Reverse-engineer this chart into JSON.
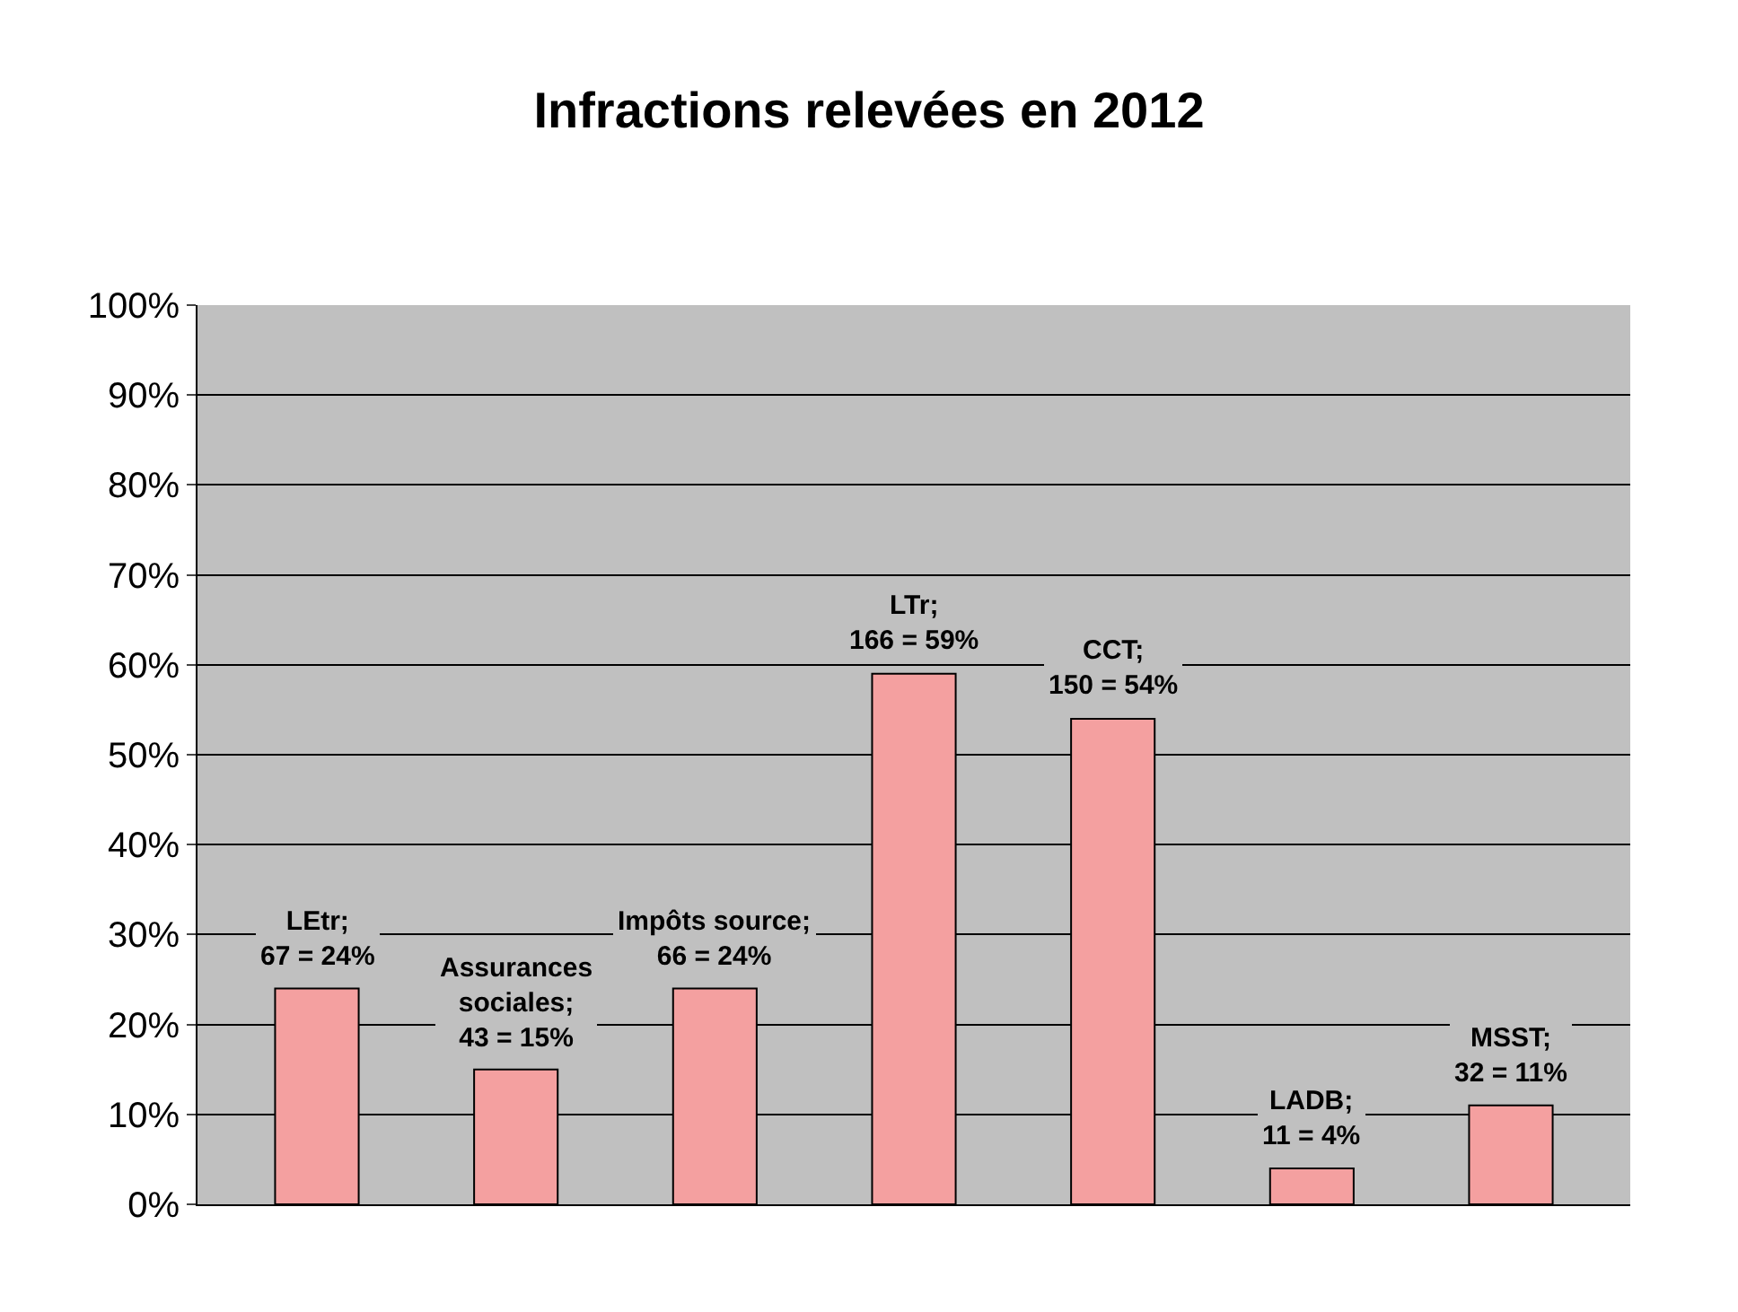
{
  "chart_data": {
    "type": "bar",
    "title": "Infractions relevées en 2012",
    "categories": [
      null,
      null,
      null,
      null,
      null,
      null,
      null
    ],
    "values": [
      24,
      15,
      24,
      59,
      54,
      4,
      11
    ],
    "value_labels": [
      "LEtr;\n67 = 24%",
      "Assurances\nsociales;\n43 = 15%",
      "Impôts source;\n66 = 24%",
      "LTr;\n166 = 59%",
      "CCT;\n150 = 54%",
      "LADB;\n11 = 4%",
      "MSST;\n32 = 11%"
    ],
    "color": "#f4a0a0",
    "ylim": [
      0,
      100
    ],
    "yticks": [
      {
        "value": 0,
        "label": "0%"
      },
      {
        "value": 10,
        "label": "10%"
      },
      {
        "value": 20,
        "label": "20%"
      },
      {
        "value": 30,
        "label": "30%"
      },
      {
        "value": 40,
        "label": "40%"
      },
      {
        "value": 50,
        "label": "50%"
      },
      {
        "value": 60,
        "label": "60%"
      },
      {
        "value": 70,
        "label": "70%"
      },
      {
        "value": 80,
        "label": "80%"
      },
      {
        "value": 90,
        "label": "90%"
      },
      {
        "value": 100,
        "label": "100%"
      }
    ],
    "grid": "y",
    "tick_labels": "y"
  }
}
